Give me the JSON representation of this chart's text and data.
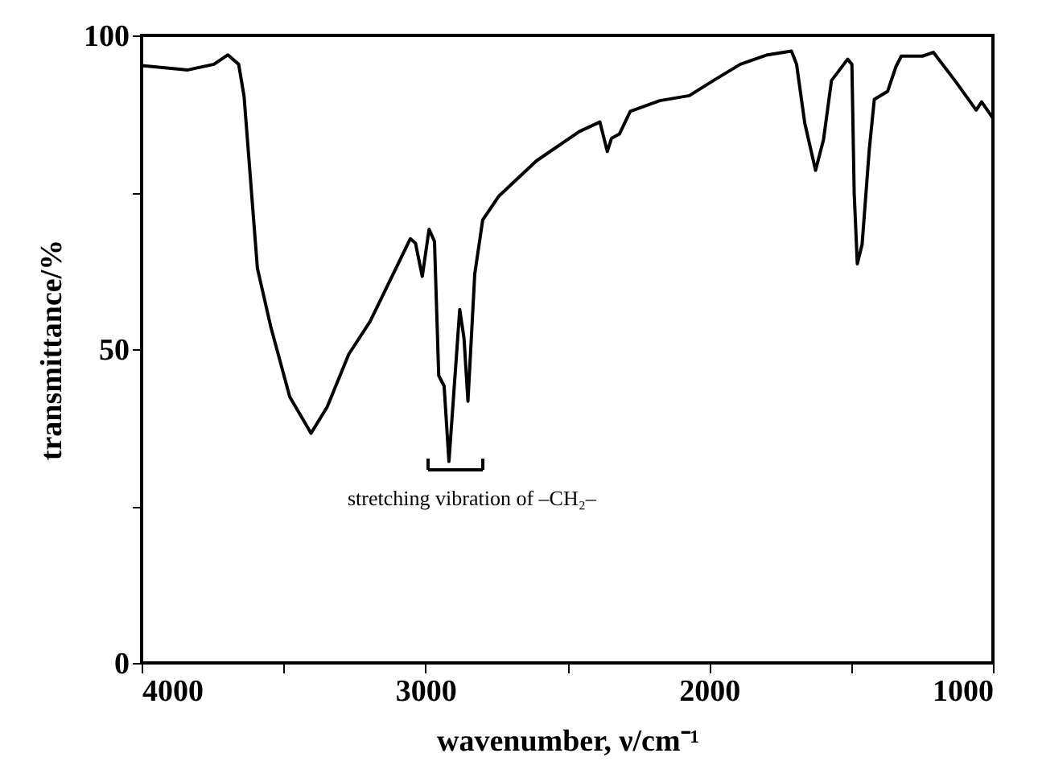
{
  "chart_data": {
    "type": "line",
    "xlabel": "wavenumber, ν/cm⁻¹",
    "ylabel": "transmittance/%",
    "x": [
      4000,
      3837,
      3745,
      3696,
      3658,
      3639,
      3592,
      3545,
      3478,
      3403,
      3346,
      3270,
      3195,
      3053,
      3035,
      3011,
      2987,
      2968,
      2953,
      2934,
      2917,
      2879,
      2864,
      2850,
      2826,
      2798,
      2741,
      2609,
      2457,
      2385,
      2359,
      2344,
      2316,
      2278,
      2174,
      2070,
      1985,
      1890,
      1795,
      1710,
      1692,
      1663,
      1625,
      1597,
      1569,
      1512,
      1497,
      1489,
      1478,
      1461,
      1436,
      1418,
      1371,
      1342,
      1323,
      1248,
      1210,
      1134,
      1059,
      1040,
      1000
    ],
    "series": [
      {
        "color": "#000000",
        "values": [
          95.2,
          94.5,
          95.4,
          96.9,
          95.4,
          90.3,
          62.9,
          53.6,
          42.4,
          36.6,
          40.8,
          49.2,
          54.4,
          67.6,
          66.9,
          61.6,
          69.1,
          67.2,
          45.8,
          44.1,
          32.1,
          56.3,
          51.8,
          41.7,
          62,
          70.6,
          74.4,
          80,
          84.7,
          86.2,
          81.5,
          83.6,
          84.3,
          87.9,
          89.6,
          90.4,
          92.8,
          95.4,
          96.9,
          97.5,
          95.4,
          86,
          78.5,
          83.4,
          92.8,
          96.2,
          95.4,
          74.9,
          63.6,
          66.7,
          81.7,
          89.8,
          91.1,
          95,
          96.7,
          96.7,
          97.3,
          92.8,
          88.1,
          89.4,
          86.8
        ]
      }
    ],
    "xlim": [
      4000,
      1000
    ],
    "ylim": [
      0,
      100
    ],
    "xticks": [
      4000,
      {
        "value": 3500,
        "label": null
      },
      3000,
      {
        "value": 2500,
        "label": null
      },
      2000,
      {
        "value": 1500,
        "label": null
      },
      1000
    ],
    "yticks": [
      0,
      {
        "value": 25,
        "label": null
      },
      50,
      {
        "value": 75,
        "label": null
      },
      100
    ],
    "grid": false,
    "marker": "none",
    "line_style": "solid",
    "annotations": [
      "stretching vibration of –CH₂–"
    ]
  }
}
